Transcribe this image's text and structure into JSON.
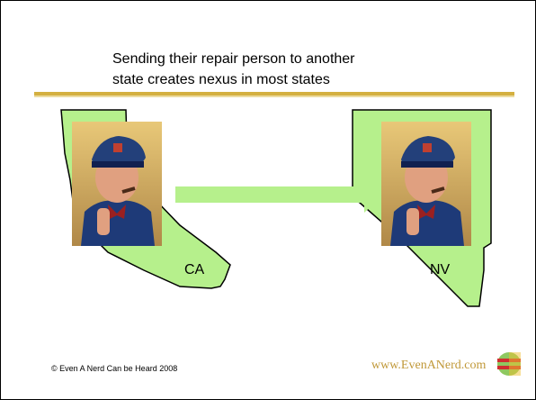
{
  "title": {
    "lines": [
      "Sending their repair person to another",
      "state creates nexus in most states"
    ]
  },
  "states": [
    {
      "label": "CA"
    },
    {
      "label": "NV"
    }
  ],
  "footer": {
    "copyright": "© Even A Nerd Can be Heard 2008",
    "website": "www.EvenANerd.com"
  }
}
